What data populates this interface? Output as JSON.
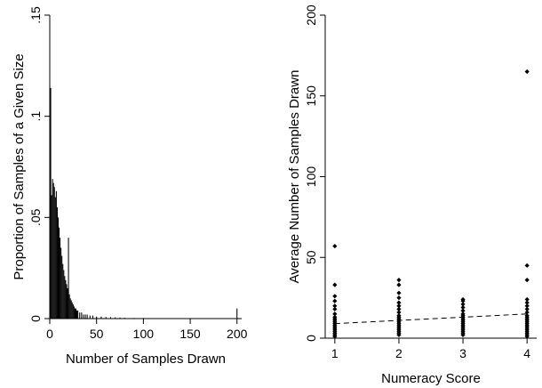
{
  "chart_data": [
    {
      "type": "bar",
      "subtype": "histogram",
      "xlabel": "Number of Samples Drawn",
      "ylabel": "Proportion of Samples of a Given Size",
      "xlim": [
        0,
        205
      ],
      "ylim": [
        0,
        0.15
      ],
      "xticks": [
        0,
        50,
        100,
        150,
        200
      ],
      "xtick_labels": [
        "0",
        "50",
        "100",
        "150",
        "200"
      ],
      "yticks": [
        0,
        0.05,
        0.1,
        0.15
      ],
      "ytick_labels": [
        "0",
        ".05",
        ".1",
        ".15"
      ],
      "bar_color": "#000000",
      "bin_width": 1,
      "bins": [
        {
          "x": 1,
          "y": 0.114
        },
        {
          "x": 2,
          "y": 0.061
        },
        {
          "x": 3,
          "y": 0.069
        },
        {
          "x": 4,
          "y": 0.067
        },
        {
          "x": 5,
          "y": 0.065
        },
        {
          "x": 6,
          "y": 0.06
        },
        {
          "x": 7,
          "y": 0.063
        },
        {
          "x": 8,
          "y": 0.055
        },
        {
          "x": 9,
          "y": 0.05
        },
        {
          "x": 10,
          "y": 0.045
        },
        {
          "x": 11,
          "y": 0.04
        },
        {
          "x": 12,
          "y": 0.035
        },
        {
          "x": 13,
          "y": 0.031
        },
        {
          "x": 14,
          "y": 0.027
        },
        {
          "x": 15,
          "y": 0.024
        },
        {
          "x": 16,
          "y": 0.021
        },
        {
          "x": 17,
          "y": 0.019
        },
        {
          "x": 18,
          "y": 0.017
        },
        {
          "x": 19,
          "y": 0.015
        },
        {
          "x": 20,
          "y": 0.04
        },
        {
          "x": 21,
          "y": 0.012
        },
        {
          "x": 22,
          "y": 0.01
        },
        {
          "x": 23,
          "y": 0.009
        },
        {
          "x": 24,
          "y": 0.008
        },
        {
          "x": 25,
          "y": 0.007
        },
        {
          "x": 26,
          "y": 0.006
        },
        {
          "x": 27,
          "y": 0.005
        },
        {
          "x": 28,
          "y": 0.005
        },
        {
          "x": 29,
          "y": 0.004
        },
        {
          "x": 30,
          "y": 0.004
        },
        {
          "x": 32,
          "y": 0.003
        },
        {
          "x": 34,
          "y": 0.003
        },
        {
          "x": 36,
          "y": 0.002
        },
        {
          "x": 38,
          "y": 0.002
        },
        {
          "x": 40,
          "y": 0.002
        },
        {
          "x": 43,
          "y": 0.0015
        },
        {
          "x": 46,
          "y": 0.0015
        },
        {
          "x": 50,
          "y": 0.001
        },
        {
          "x": 55,
          "y": 0.001
        },
        {
          "x": 60,
          "y": 0.0008
        },
        {
          "x": 65,
          "y": 0.0007
        },
        {
          "x": 70,
          "y": 0.0006
        },
        {
          "x": 75,
          "y": 0.0005
        },
        {
          "x": 80,
          "y": 0.0004
        },
        {
          "x": 90,
          "y": 0.0003
        },
        {
          "x": 100,
          "y": 0.0003
        },
        {
          "x": 110,
          "y": 0.0002
        },
        {
          "x": 125,
          "y": 0.0002
        },
        {
          "x": 140,
          "y": 0.0002
        },
        {
          "x": 200,
          "y": 0.005
        }
      ]
    },
    {
      "type": "scatter",
      "xlabel": "Numeracy Score",
      "ylabel": "Average Number of Samples Drawn",
      "xlim": [
        0.85,
        4.15
      ],
      "ylim": [
        0,
        200
      ],
      "xticks": [
        1,
        2,
        3,
        4
      ],
      "xtick_labels": [
        "1",
        "2",
        "3",
        "4"
      ],
      "yticks": [
        0,
        50,
        100,
        150,
        200
      ],
      "ytick_labels": [
        "0",
        "50",
        "100",
        "150",
        "200"
      ],
      "point_color": "#000000",
      "series": [
        {
          "points": [
            [
              1,
              57
            ],
            [
              1,
              33
            ],
            [
              1,
              26
            ],
            [
              1,
              23
            ],
            [
              1,
              20
            ],
            [
              1,
              18
            ],
            [
              1,
              15
            ],
            [
              1,
              13
            ],
            [
              1,
              12
            ],
            [
              1,
              11
            ],
            [
              1,
              10
            ],
            [
              1,
              9
            ],
            [
              1,
              8
            ],
            [
              1,
              7
            ],
            [
              1,
              6
            ],
            [
              1,
              5
            ],
            [
              1,
              4
            ],
            [
              1,
              3
            ],
            [
              1,
              2
            ],
            [
              1,
              1
            ],
            [
              2,
              36
            ],
            [
              2,
              33
            ],
            [
              2,
              28
            ],
            [
              2,
              25
            ],
            [
              2,
              22
            ],
            [
              2,
              20
            ],
            [
              2,
              18
            ],
            [
              2,
              16
            ],
            [
              2,
              14
            ],
            [
              2,
              13
            ],
            [
              2,
              12
            ],
            [
              2,
              11
            ],
            [
              2,
              10
            ],
            [
              2,
              9
            ],
            [
              2,
              8
            ],
            [
              2,
              7
            ],
            [
              2,
              6
            ],
            [
              2,
              5
            ],
            [
              2,
              4
            ],
            [
              2,
              3
            ],
            [
              2,
              2
            ],
            [
              3,
              24
            ],
            [
              3,
              23
            ],
            [
              3,
              21
            ],
            [
              3,
              19
            ],
            [
              3,
              17
            ],
            [
              3,
              15
            ],
            [
              3,
              14
            ],
            [
              3,
              13
            ],
            [
              3,
              12
            ],
            [
              3,
              11
            ],
            [
              3,
              10
            ],
            [
              3,
              9
            ],
            [
              3,
              8
            ],
            [
              3,
              7
            ],
            [
              3,
              6
            ],
            [
              3,
              5
            ],
            [
              3,
              4
            ],
            [
              3,
              3
            ],
            [
              3,
              2
            ],
            [
              4,
              165
            ],
            [
              4,
              45
            ],
            [
              4,
              36
            ],
            [
              4,
              24
            ],
            [
              4,
              22
            ],
            [
              4,
              20
            ],
            [
              4,
              18
            ],
            [
              4,
              16
            ],
            [
              4,
              14
            ],
            [
              4,
              13
            ],
            [
              4,
              12
            ],
            [
              4,
              11
            ],
            [
              4,
              10
            ],
            [
              4,
              9
            ],
            [
              4,
              8
            ],
            [
              4,
              7
            ],
            [
              4,
              6
            ],
            [
              4,
              5
            ],
            [
              4,
              4
            ],
            [
              4,
              3
            ],
            [
              4,
              2
            ],
            [
              4,
              1
            ]
          ]
        }
      ],
      "fit_line": {
        "style": "dashed",
        "x": [
          1,
          4
        ],
        "y": [
          9,
          15
        ]
      }
    }
  ]
}
